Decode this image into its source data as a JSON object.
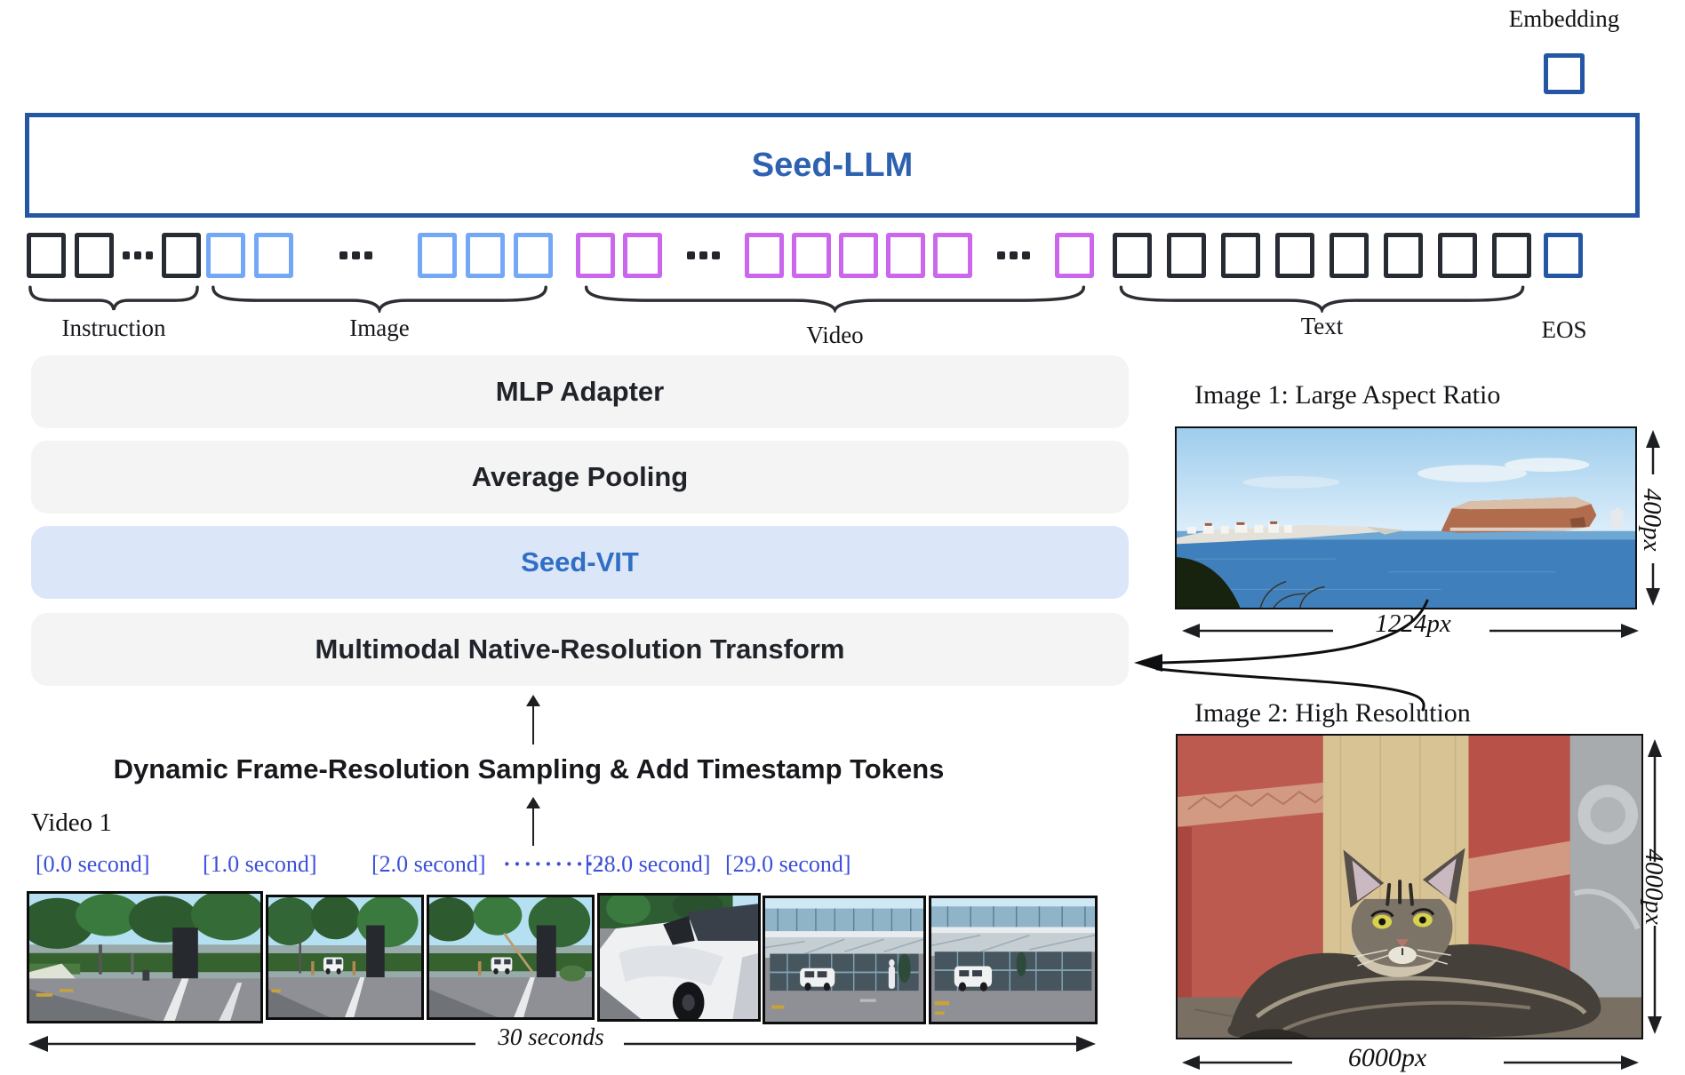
{
  "embedding_label": "Embedding",
  "seed_llm": {
    "label": "Seed-LLM"
  },
  "tokens": {
    "groups": [
      {
        "id": "instruction",
        "label": "Instruction",
        "color": "#272b33",
        "pattern": [
          "sq",
          "sq",
          "dots",
          "sq"
        ]
      },
      {
        "id": "image",
        "label": "Image",
        "color": "#74a8f6",
        "pattern": [
          "sq",
          "sq",
          "dots",
          "sq",
          "sq",
          "sq"
        ]
      },
      {
        "id": "video",
        "label": "Video",
        "color": "#ca67ed",
        "pattern": [
          "sq",
          "sq",
          "dots",
          "sq",
          "sq",
          "sq",
          "sq",
          "sq",
          "dots",
          "sq"
        ]
      },
      {
        "id": "text",
        "label": "Text",
        "color": "#272b33",
        "pattern": [
          "sq",
          "sq",
          "sq",
          "sq",
          "sq",
          "sq",
          "sq",
          "sq"
        ]
      }
    ],
    "eos_label": "EOS",
    "ellipsis_glyph": "···"
  },
  "pipeline": {
    "mlp": "MLP Adapter",
    "pooling": "Average Pooling",
    "vit": "Seed-VIT",
    "transform": "Multimodal Native-Resolution Transform"
  },
  "sampling_label": "Dynamic Frame-Resolution Sampling & Add Timestamp Tokens",
  "video": {
    "title": "Video 1",
    "timestamps": [
      "[0.0 second]",
      "[1.0 second]",
      "[2.0 second]",
      "··········",
      "[28.0 second]",
      "[29.0 second]"
    ],
    "duration_label": "30 seconds"
  },
  "image1": {
    "title": "Image 1: Large Aspect Ratio",
    "height_label": "400px",
    "width_label": "1224px"
  },
  "image2": {
    "title": "Image 2: High Resolution",
    "height_label": "4000px",
    "width_label": "6000px"
  },
  "colors": {
    "accent": "#2456a4",
    "llm-text": "#2e62b1",
    "tok-black": "#272b33",
    "tok-blue": "#74a8f6",
    "tok-purple": "#ca67ed",
    "brace": "#2c2f33",
    "box-bg": "#f4f4f5",
    "box-text": "#202329",
    "vit-bg": "#dbe6f9",
    "vit-text": "#306fc3",
    "timestamp": "#3b4fd9",
    "ink": "#1c1e22"
  }
}
